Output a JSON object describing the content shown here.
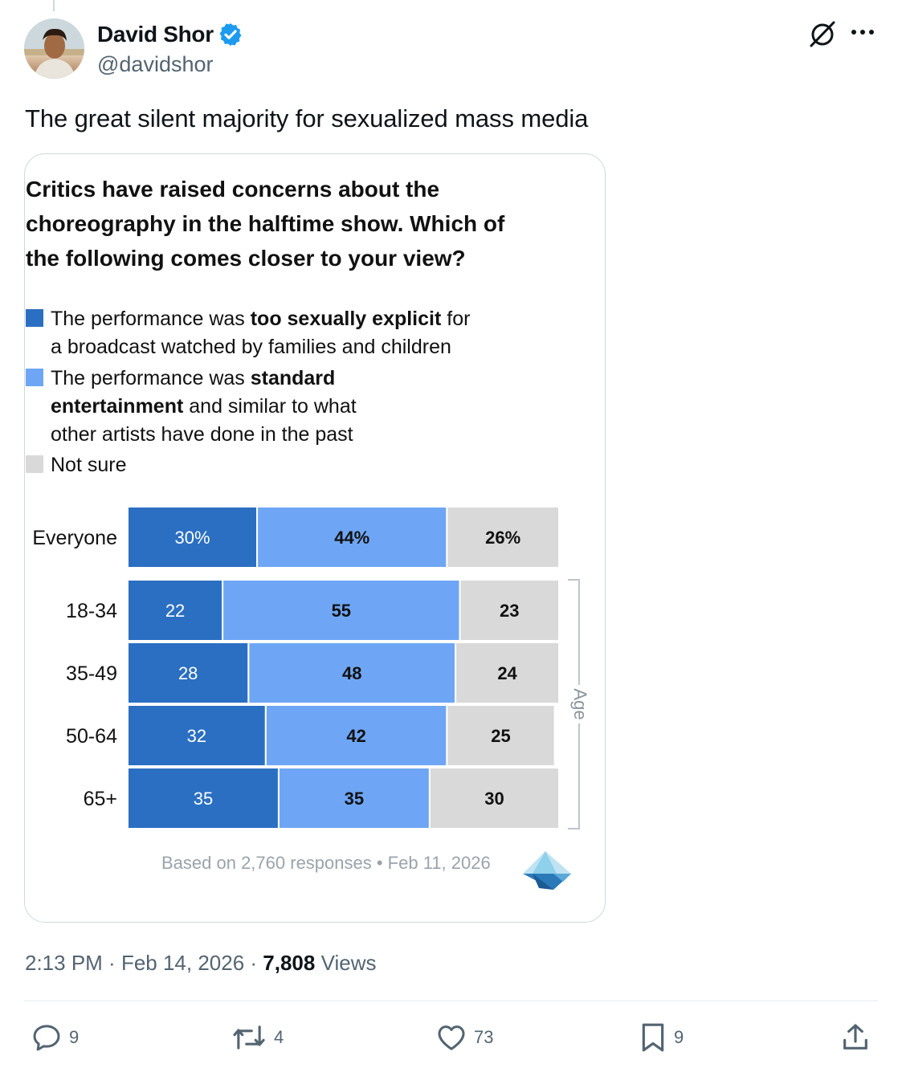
{
  "author": {
    "name": "David Shor",
    "handle": "@davidshor",
    "verified_color": "#1d9bf0"
  },
  "tweet": {
    "text": "The great silent majority for sexualized mass media"
  },
  "chart": {
    "title_lines": [
      "Critics have raised concerns about the",
      "choreography in the halftime show. Which of",
      "the following comes closer to your view?"
    ],
    "legend": [
      {
        "color": "#2a6fc2",
        "before": "The performance was ",
        "bold": "too sexually explicit",
        "after": " for",
        "line2": "a broadcast watched by families and children",
        "line3": ""
      },
      {
        "color": "#6ea6f5",
        "before": "The performance was ",
        "bold": "standard",
        "after": "",
        "line2_bold": "entertainment",
        "line2": " and similar to what",
        "line3": "other artists have done in the past"
      },
      {
        "color": "#d9d9d9",
        "before": "Not sure",
        "bold": "",
        "after": ""
      }
    ],
    "source_note": "Based on 2,760 responses • Feb 11, 2026",
    "age_axis_label": "Age"
  },
  "chart_data": {
    "type": "bar",
    "orientation": "horizontal-stacked-100",
    "title": "Critics have raised concerns about the choreography in the halftime show. Which of the following comes closer to your view?",
    "categories": [
      "Everyone",
      "18-34",
      "35-49",
      "50-64",
      "65+"
    ],
    "series": [
      {
        "name": "The performance was too sexually explicit for a broadcast watched by families and children",
        "color": "#2a6fc2",
        "values": [
          30,
          22,
          28,
          32,
          35
        ],
        "labels": [
          "30%",
          "22",
          "28",
          "32",
          "35"
        ]
      },
      {
        "name": "The performance was standard entertainment and similar to what other artists have done in the past",
        "color": "#6ea6f5",
        "values": [
          44,
          55,
          48,
          42,
          35
        ],
        "labels": [
          "44%",
          "55",
          "48",
          "42",
          "35"
        ]
      },
      {
        "name": "Not sure",
        "color": "#d9d9d9",
        "values": [
          26,
          23,
          24,
          25,
          30
        ],
        "labels": [
          "26%",
          "23",
          "24",
          "25",
          "30"
        ]
      }
    ],
    "group_label": "Age",
    "xlim": [
      0,
      100
    ]
  },
  "meta": {
    "time": "2:13 PM",
    "sep1": " · ",
    "date": "Feb 14, 2026",
    "sep2": " · ",
    "views_count": "7,808",
    "views_label": " Views"
  },
  "actions": {
    "replies": "9",
    "reposts": "4",
    "likes": "73",
    "bookmarks": "9"
  }
}
